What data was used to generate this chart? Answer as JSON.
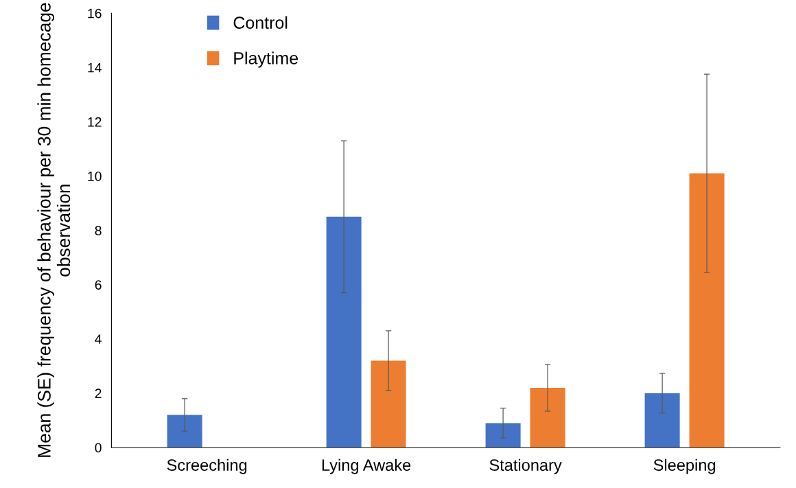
{
  "chart_data": {
    "type": "bar",
    "ylabel": "Mean (SE) frequency of behaviour per 30 min homecage observation",
    "categories": [
      "Screeching",
      "Lying Awake",
      "Stationary",
      "Sleeping"
    ],
    "series": [
      {
        "name": "Control",
        "color": "#4472c4",
        "values": [
          1.2,
          8.5,
          0.9,
          2.0
        ],
        "errors": [
          0.6,
          2.8,
          0.55,
          0.73
        ]
      },
      {
        "name": "Playtime",
        "color": "#ed7d31",
        "values": [
          0,
          3.2,
          2.2,
          10.1
        ],
        "errors": [
          null,
          1.1,
          0.86,
          3.65
        ]
      }
    ],
    "ylim": [
      0,
      16
    ],
    "yticks": [
      0,
      2,
      4,
      6,
      8,
      10,
      12,
      14,
      16
    ],
    "grid": false,
    "legend": "top left"
  }
}
